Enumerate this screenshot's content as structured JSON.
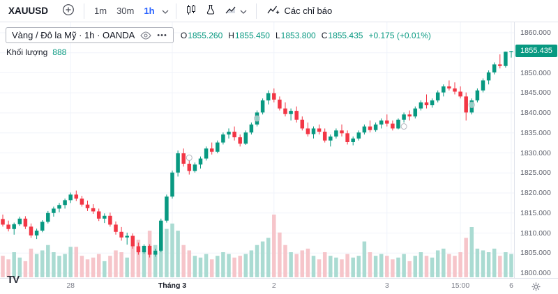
{
  "toolbar": {
    "symbol": "XAUUSD",
    "intervals": [
      {
        "label": "1m"
      },
      {
        "label": "30m"
      },
      {
        "label": "1h",
        "active": true
      }
    ],
    "indicators_label": "Các chỉ báo"
  },
  "legend": {
    "title": "Vàng / Đô la Mỹ · 1h · OANDA",
    "more_glyph": "•••",
    "ohlc": {
      "o_label": "O",
      "o": "1855.260",
      "h_label": "H",
      "h": "1855.450",
      "l_label": "L",
      "l": "1853.800",
      "c_label": "C",
      "c": "1855.435",
      "change": "+0.175 (+0.01%)"
    },
    "volume_label": "Khối lượng",
    "volume_value": "888"
  },
  "branding": {
    "logo_text": "TV"
  },
  "chart_data": {
    "type": "candlestick",
    "symbol": "XAUUSD",
    "interval": "1h",
    "colors": {
      "up": "#089981",
      "down": "#f23645",
      "volume_up": "#aadbd2",
      "volume_down": "#f6c5ca",
      "grid": "#f0f3fa",
      "accent_blue": "#2962ff"
    },
    "price_axis": {
      "min": 1800,
      "max": 1860,
      "step": 5,
      "ticks": [
        {
          "value": 1860,
          "label": "1860.000"
        },
        {
          "value": 1855,
          "label": "1855.000"
        },
        {
          "value": 1850,
          "label": "1850.000"
        },
        {
          "value": 1845,
          "label": "1845.000"
        },
        {
          "value": 1840,
          "label": "1840.000"
        },
        {
          "value": 1835,
          "label": "1835.000"
        },
        {
          "value": 1830,
          "label": "1830.000"
        },
        {
          "value": 1825,
          "label": "1825.000"
        },
        {
          "value": 1820,
          "label": "1820.000"
        },
        {
          "value": 1815,
          "label": "1815.000"
        },
        {
          "value": 1810,
          "label": "1810.000"
        },
        {
          "value": 1805,
          "label": "1805.000"
        },
        {
          "value": 1800,
          "label": "1800.000"
        }
      ],
      "last": {
        "value": 1855.435,
        "label": "1855.435"
      }
    },
    "time_axis": {
      "labels": [
        {
          "index": 12,
          "text": "28"
        },
        {
          "index": 30,
          "text": "Tháng 3",
          "emphasis": true
        },
        {
          "index": 48,
          "text": "2"
        },
        {
          "index": 68,
          "text": "3"
        },
        {
          "index": 81,
          "text": "15:00"
        },
        {
          "index": 90,
          "text": "6"
        }
      ]
    },
    "candles": [
      [
        1813.5,
        1814.6,
        1811.6,
        1812.1,
        12
      ],
      [
        1812.1,
        1813.1,
        1810.4,
        1811.0,
        10
      ],
      [
        1811.0,
        1812.6,
        1809.6,
        1812.2,
        14
      ],
      [
        1812.2,
        1814.1,
        1811.8,
        1813.6,
        11
      ],
      [
        1813.6,
        1814.2,
        1811.0,
        1811.6,
        9
      ],
      [
        1811.6,
        1812.4,
        1808.8,
        1809.4,
        16
      ],
      [
        1809.4,
        1811.1,
        1808.5,
        1810.6,
        13
      ],
      [
        1810.6,
        1813.2,
        1810.2,
        1812.8,
        15
      ],
      [
        1812.8,
        1815.5,
        1812.4,
        1815.0,
        18
      ],
      [
        1815.0,
        1816.6,
        1814.1,
        1816.1,
        14
      ],
      [
        1816.1,
        1817.5,
        1815.2,
        1817.0,
        12
      ],
      [
        1817.0,
        1818.6,
        1816.1,
        1818.2,
        13
      ],
      [
        1818.2,
        1820.1,
        1817.5,
        1819.6,
        17
      ],
      [
        1819.6,
        1820.6,
        1818.0,
        1818.6,
        17
      ],
      [
        1818.6,
        1819.3,
        1816.6,
        1817.1,
        12
      ],
      [
        1817.1,
        1818.1,
        1815.5,
        1816.2,
        10
      ],
      [
        1816.2,
        1817.2,
        1814.8,
        1815.4,
        11
      ],
      [
        1815.4,
        1816.1,
        1813.0,
        1813.6,
        13
      ],
      [
        1813.6,
        1814.9,
        1812.5,
        1814.3,
        9
      ],
      [
        1814.3,
        1815.1,
        1811.6,
        1812.1,
        12
      ],
      [
        1812.1,
        1812.9,
        1809.6,
        1810.3,
        15
      ],
      [
        1810.3,
        1811.5,
        1808.1,
        1808.9,
        14
      ],
      [
        1808.9,
        1810.1,
        1807.1,
        1809.3,
        11
      ],
      [
        1809.3,
        1809.9,
        1806.1,
        1806.7,
        18
      ],
      [
        1806.7,
        1807.6,
        1804.6,
        1805.2,
        21
      ],
      [
        1805.2,
        1807.2,
        1804.8,
        1806.8,
        15
      ],
      [
        1806.8,
        1807.2,
        1803.9,
        1804.6,
        26
      ],
      [
        1804.6,
        1806.1,
        1804.1,
        1805.6,
        18
      ],
      [
        1805.6,
        1813.6,
        1805.2,
        1813.1,
        25
      ],
      [
        1813.1,
        1819.6,
        1812.6,
        1819.1,
        27
      ],
      [
        1819.1,
        1825.6,
        1818.6,
        1825.1,
        30
      ],
      [
        1825.1,
        1830.6,
        1824.1,
        1829.9,
        26
      ],
      [
        1829.9,
        1831.1,
        1826.6,
        1827.3,
        18
      ],
      [
        1827.3,
        1828.1,
        1824.6,
        1825.5,
        15
      ],
      [
        1825.5,
        1827.6,
        1825.1,
        1827.1,
        12
      ],
      [
        1827.1,
        1829.1,
        1826.1,
        1828.6,
        11
      ],
      [
        1828.6,
        1831.6,
        1828.1,
        1831.1,
        13
      ],
      [
        1831.1,
        1832.6,
        1829.6,
        1830.3,
        10
      ],
      [
        1830.3,
        1833.1,
        1829.9,
        1832.6,
        12
      ],
      [
        1832.6,
        1835.1,
        1832.1,
        1834.6,
        14
      ],
      [
        1834.6,
        1836.1,
        1833.6,
        1835.3,
        13
      ],
      [
        1835.3,
        1836.6,
        1833.1,
        1833.9,
        11
      ],
      [
        1833.9,
        1834.6,
        1831.6,
        1832.3,
        12
      ],
      [
        1832.3,
        1835.6,
        1832.0,
        1835.1,
        13
      ],
      [
        1835.1,
        1837.6,
        1834.6,
        1837.1,
        15
      ],
      [
        1837.1,
        1840.6,
        1836.6,
        1840.1,
        18
      ],
      [
        1840.1,
        1843.6,
        1839.6,
        1843.1,
        20
      ],
      [
        1843.1,
        1845.6,
        1842.1,
        1844.9,
        22
      ],
      [
        1844.9,
        1846.1,
        1842.6,
        1843.3,
        35
      ],
      [
        1843.3,
        1844.1,
        1840.6,
        1841.1,
        25
      ],
      [
        1841.1,
        1842.6,
        1839.1,
        1839.7,
        18
      ],
      [
        1839.7,
        1841.1,
        1838.1,
        1840.5,
        14
      ],
      [
        1840.5,
        1841.6,
        1837.6,
        1838.3,
        13
      ],
      [
        1838.3,
        1839.1,
        1835.6,
        1836.1,
        15
      ],
      [
        1836.1,
        1837.6,
        1834.1,
        1834.7,
        16
      ],
      [
        1834.7,
        1836.6,
        1833.6,
        1836.1,
        12
      ],
      [
        1836.1,
        1837.1,
        1834.6,
        1835.3,
        10
      ],
      [
        1835.3,
        1836.1,
        1832.6,
        1833.1,
        14
      ],
      [
        1833.1,
        1834.6,
        1831.6,
        1834.1,
        12
      ],
      [
        1834.1,
        1836.1,
        1833.6,
        1835.6,
        11
      ],
      [
        1835.6,
        1837.1,
        1834.1,
        1834.9,
        10
      ],
      [
        1834.9,
        1835.6,
        1832.1,
        1832.7,
        13
      ],
      [
        1832.7,
        1834.1,
        1831.9,
        1833.6,
        11
      ],
      [
        1833.6,
        1835.6,
        1833.1,
        1835.1,
        12
      ],
      [
        1835.1,
        1837.1,
        1834.6,
        1836.6,
        20
      ],
      [
        1836.6,
        1838.1,
        1835.1,
        1835.7,
        14
      ],
      [
        1835.7,
        1837.6,
        1835.3,
        1837.1,
        12
      ],
      [
        1837.1,
        1838.6,
        1836.1,
        1838.1,
        13
      ],
      [
        1838.1,
        1839.6,
        1836.6,
        1837.3,
        12
      ],
      [
        1837.3,
        1838.1,
        1835.6,
        1836.1,
        10
      ],
      [
        1836.1,
        1838.6,
        1835.9,
        1838.3,
        11
      ],
      [
        1838.3,
        1840.1,
        1837.6,
        1839.6,
        13
      ],
      [
        1839.6,
        1840.6,
        1838.1,
        1839.1,
        9
      ],
      [
        1839.1,
        1841.6,
        1838.6,
        1841.1,
        12
      ],
      [
        1841.1,
        1843.1,
        1840.6,
        1842.6,
        14
      ],
      [
        1842.6,
        1844.6,
        1841.1,
        1841.9,
        12
      ],
      [
        1841.9,
        1843.6,
        1841.3,
        1843.1,
        11
      ],
      [
        1843.1,
        1845.6,
        1842.6,
        1845.1,
        15
      ],
      [
        1845.1,
        1847.1,
        1844.1,
        1846.6,
        16
      ],
      [
        1846.6,
        1848.1,
        1845.6,
        1846.1,
        13
      ],
      [
        1846.1,
        1847.6,
        1844.6,
        1845.3,
        12
      ],
      [
        1845.3,
        1846.6,
        1843.6,
        1844.1,
        14
      ],
      [
        1844.1,
        1845.1,
        1838.1,
        1840.1,
        22
      ],
      [
        1840.1,
        1843.6,
        1839.6,
        1843.1,
        28
      ],
      [
        1843.1,
        1846.1,
        1842.6,
        1845.6,
        16
      ],
      [
        1845.6,
        1848.6,
        1845.1,
        1848.1,
        15
      ],
      [
        1848.1,
        1850.6,
        1847.1,
        1850.1,
        14
      ],
      [
        1850.1,
        1852.6,
        1849.6,
        1852.1,
        16
      ],
      [
        1852.1,
        1854.6,
        1851.1,
        1851.7,
        12
      ],
      [
        1851.7,
        1855.3,
        1851.3,
        1855.26,
        14
      ],
      [
        1855.26,
        1855.45,
        1853.8,
        1855.435,
        13
      ]
    ],
    "markers": [
      {
        "index": 33,
        "price": 1828.8
      },
      {
        "index": 45,
        "price": 1838.6
      },
      {
        "index": 71,
        "price": 1836.6
      },
      {
        "index": 83,
        "price": 1842.0
      }
    ]
  }
}
